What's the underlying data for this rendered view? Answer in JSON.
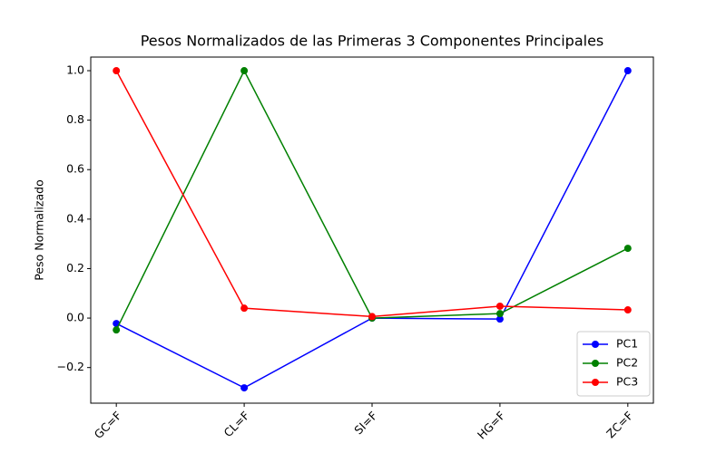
{
  "chart_data": {
    "type": "line",
    "title": "Pesos Normalizados de las Primeras 3 Componentes Principales",
    "y_label": "Peso Normalizado",
    "categories": [
      "GC=F",
      "CL=F",
      "SI=F",
      "HG=F",
      "ZC=F"
    ],
    "series": [
      {
        "name": "PC1",
        "color": "#0000ff",
        "values": [
          -0.022,
          -0.282,
          0.0,
          -0.004,
          1.0
        ]
      },
      {
        "name": "PC2",
        "color": "#008000",
        "values": [
          -0.048,
          1.0,
          0.0,
          0.018,
          0.282
        ]
      },
      {
        "name": "PC3",
        "color": "#ff0000",
        "values": [
          1.0,
          0.04,
          0.006,
          0.048,
          0.033
        ]
      }
    ],
    "ylim": [
      -0.344,
      1.055
    ],
    "yticks": [
      {
        "value": -0.2,
        "label": "−0.2"
      },
      {
        "value": 0,
        "label": "0.0"
      },
      0.2,
      0.4,
      0.6,
      0.8,
      {
        "value": 1,
        "label": "1.0"
      }
    ],
    "legend": "lower right"
  }
}
